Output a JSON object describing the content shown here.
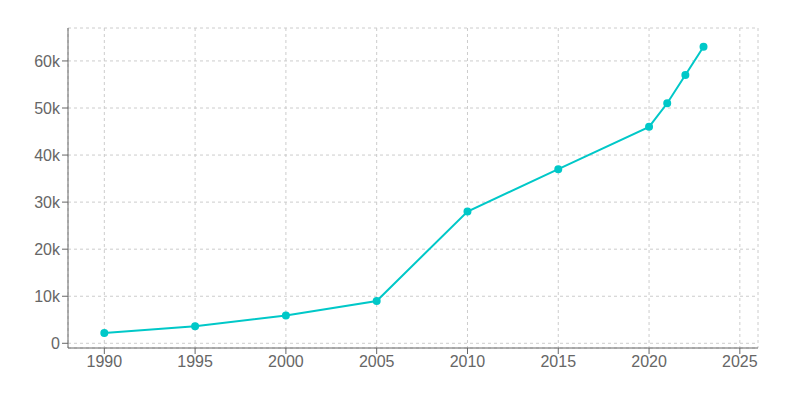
{
  "chart_data": {
    "type": "line",
    "x": [
      1990,
      1995,
      2000,
      2005,
      2010,
      2015,
      2020,
      2021,
      2022,
      2023
    ],
    "values": [
      2200,
      3600,
      5900,
      9000,
      28000,
      37000,
      46000,
      51000,
      57000,
      63000
    ],
    "color": "#00c8c8",
    "marker": "o",
    "xlim": [
      1988,
      2026
    ],
    "ylim": [
      -1000,
      67000
    ],
    "xticks": [
      1990,
      1995,
      2000,
      2005,
      2010,
      2015,
      2020,
      2025
    ],
    "yticks": [
      0,
      {
        "value": 10000,
        "label": "10k"
      },
      {
        "value": 20000,
        "label": "20k"
      },
      {
        "value": 30000,
        "label": "30k"
      },
      {
        "value": 40000,
        "label": "40k"
      },
      {
        "value": 50000,
        "label": "50k"
      },
      {
        "value": 60000,
        "label": "60k"
      }
    ],
    "grid": true
  }
}
